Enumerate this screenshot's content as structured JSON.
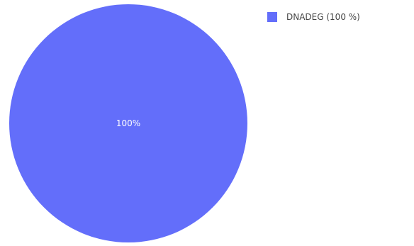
{
  "chart_data": {
    "type": "pie",
    "slices": [
      {
        "label": "DNADEG",
        "value": 100,
        "percent_label": "100%",
        "legend_text": "DNADEG (100 %)",
        "color": "#636efa"
      }
    ],
    "legend_position": "top-right"
  }
}
